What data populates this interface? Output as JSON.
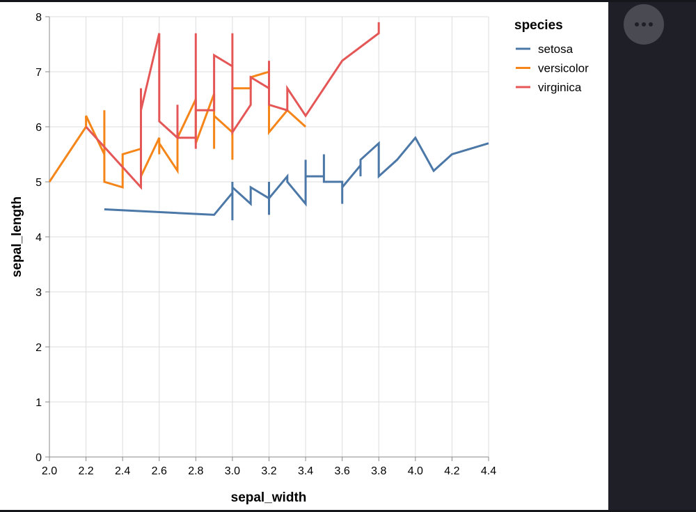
{
  "chart_data": {
    "type": "line",
    "title": "",
    "xlabel": "sepal_width",
    "ylabel": "sepal_length",
    "xlim": [
      2.0,
      4.4
    ],
    "ylim": [
      0,
      8
    ],
    "x_ticks": [
      "2.0",
      "2.2",
      "2.4",
      "2.6",
      "2.8",
      "3.0",
      "3.2",
      "3.4",
      "3.6",
      "3.8",
      "4.0",
      "4.2",
      "4.4"
    ],
    "y_ticks": [
      "0",
      "1",
      "2",
      "3",
      "4",
      "5",
      "6",
      "7",
      "8"
    ],
    "grid": true,
    "legend": {
      "title": "species",
      "position": "right"
    },
    "series": [
      {
        "name": "setosa",
        "color": "#4c78a8",
        "points": [
          [
            2.3,
            4.5
          ],
          [
            2.9,
            4.4
          ],
          [
            3.0,
            4.8
          ],
          [
            3.0,
            5.0
          ],
          [
            3.0,
            4.3
          ],
          [
            3.0,
            4.9
          ],
          [
            3.1,
            4.6
          ],
          [
            3.1,
            4.9
          ],
          [
            3.2,
            4.7
          ],
          [
            3.2,
            5.0
          ],
          [
            3.2,
            4.4
          ],
          [
            3.2,
            4.7
          ],
          [
            3.3,
            5.1
          ],
          [
            3.3,
            5.0
          ],
          [
            3.4,
            4.6
          ],
          [
            3.4,
            5.4
          ],
          [
            3.4,
            4.8
          ],
          [
            3.4,
            5.1
          ],
          [
            3.5,
            5.1
          ],
          [
            3.5,
            5.5
          ],
          [
            3.5,
            5.0
          ],
          [
            3.6,
            5.0
          ],
          [
            3.6,
            4.6
          ],
          [
            3.6,
            4.9
          ],
          [
            3.7,
            5.3
          ],
          [
            3.7,
            5.1
          ],
          [
            3.7,
            5.4
          ],
          [
            3.8,
            5.7
          ],
          [
            3.8,
            5.1
          ],
          [
            3.9,
            5.4
          ],
          [
            4.0,
            5.8
          ],
          [
            4.1,
            5.2
          ],
          [
            4.2,
            5.5
          ],
          [
            4.4,
            5.7
          ]
        ]
      },
      {
        "name": "versicolor",
        "color": "#f58518",
        "points": [
          [
            2.0,
            5.0
          ],
          [
            2.2,
            6.0
          ],
          [
            2.2,
            6.2
          ],
          [
            2.3,
            5.5
          ],
          [
            2.3,
            6.3
          ],
          [
            2.3,
            5.0
          ],
          [
            2.4,
            4.9
          ],
          [
            2.4,
            5.5
          ],
          [
            2.5,
            5.6
          ],
          [
            2.5,
            5.1
          ],
          [
            2.6,
            5.8
          ],
          [
            2.6,
            5.5
          ],
          [
            2.6,
            5.7
          ],
          [
            2.7,
            5.2
          ],
          [
            2.7,
            5.8
          ],
          [
            2.8,
            6.5
          ],
          [
            2.8,
            5.7
          ],
          [
            2.9,
            6.6
          ],
          [
            2.9,
            5.6
          ],
          [
            2.9,
            6.2
          ],
          [
            3.0,
            5.9
          ],
          [
            3.0,
            5.4
          ],
          [
            3.0,
            6.7
          ],
          [
            3.1,
            6.7
          ],
          [
            3.1,
            6.9
          ],
          [
            3.2,
            7.0
          ],
          [
            3.2,
            5.9
          ],
          [
            3.3,
            6.3
          ],
          [
            3.4,
            6.0
          ]
        ]
      },
      {
        "name": "virginica",
        "color": "#e45756",
        "points": [
          [
            2.2,
            6.0
          ],
          [
            2.5,
            4.9
          ],
          [
            2.5,
            6.7
          ],
          [
            2.5,
            6.3
          ],
          [
            2.6,
            7.7
          ],
          [
            2.6,
            6.1
          ],
          [
            2.7,
            5.8
          ],
          [
            2.7,
            6.4
          ],
          [
            2.7,
            5.8
          ],
          [
            2.8,
            5.8
          ],
          [
            2.8,
            7.7
          ],
          [
            2.8,
            5.6
          ],
          [
            2.8,
            6.3
          ],
          [
            2.9,
            6.3
          ],
          [
            2.9,
            7.3
          ],
          [
            3.0,
            7.1
          ],
          [
            3.0,
            7.7
          ],
          [
            3.0,
            5.9
          ],
          [
            3.1,
            6.4
          ],
          [
            3.1,
            6.9
          ],
          [
            3.2,
            6.7
          ],
          [
            3.2,
            7.2
          ],
          [
            3.2,
            6.4
          ],
          [
            3.3,
            6.3
          ],
          [
            3.3,
            6.7
          ],
          [
            3.4,
            6.2
          ],
          [
            3.6,
            7.2
          ],
          [
            3.8,
            7.7
          ],
          [
            3.8,
            7.9
          ]
        ]
      }
    ]
  },
  "side_panel": {
    "more_button": {
      "icon": "ellipsis-icon",
      "label": "..."
    }
  }
}
